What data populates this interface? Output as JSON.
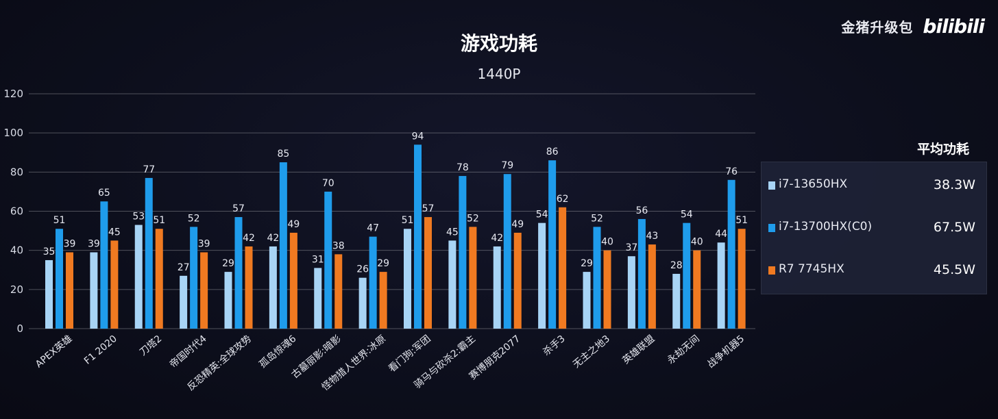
{
  "header": {
    "title": "游戏功耗",
    "subtitle": "1440P",
    "brand_text": "金猪升级包",
    "brand_logo": "bilibili"
  },
  "legend": {
    "heading": "平均功耗",
    "items": [
      {
        "name": "i7-13650HX",
        "value": "38.3W",
        "color": "#a8d4f5"
      },
      {
        "name": "i7-13700HX(C0)",
        "value": "67.5W",
        "color": "#1f9ceb"
      },
      {
        "name": "R7 7745HX",
        "value": "45.5W",
        "color": "#f07a21"
      }
    ]
  },
  "chart_data": {
    "type": "bar",
    "title": "游戏功耗",
    "subtitle": "1440P",
    "ylim": [
      0,
      120
    ],
    "yticks": [
      0,
      20,
      40,
      60,
      80,
      100,
      120
    ],
    "grid": true,
    "legend_position": "right",
    "categories": [
      "APEX英雄",
      "F1 2020",
      "刀塔2",
      "帝国时代4",
      "反恐精英:全球攻势",
      "孤岛惊魂6",
      "古墓丽影:暗影",
      "怪物猎人世界:冰原",
      "看门狗:军团",
      "骑马与砍杀2:霸主",
      "赛博朋克2077",
      "杀手3",
      "无主之地3",
      "英雄联盟",
      "永劫无间",
      "战争机器5"
    ],
    "series": [
      {
        "name": "i7-13650HX",
        "color": "#a8d4f5",
        "values": [
          35,
          39,
          53,
          27,
          29,
          42,
          31,
          26,
          51,
          45,
          42,
          54,
          29,
          37,
          28,
          44
        ]
      },
      {
        "name": "i7-13700HX(C0)",
        "color": "#1f9ceb",
        "values": [
          51,
          65,
          77,
          52,
          57,
          85,
          70,
          47,
          94,
          78,
          79,
          86,
          52,
          56,
          54,
          76
        ]
      },
      {
        "name": "R7 7745HX",
        "color": "#f07a21",
        "values": [
          39,
          45,
          51,
          39,
          42,
          49,
          38,
          29,
          57,
          52,
          49,
          62,
          40,
          43,
          40,
          51
        ]
      }
    ]
  }
}
